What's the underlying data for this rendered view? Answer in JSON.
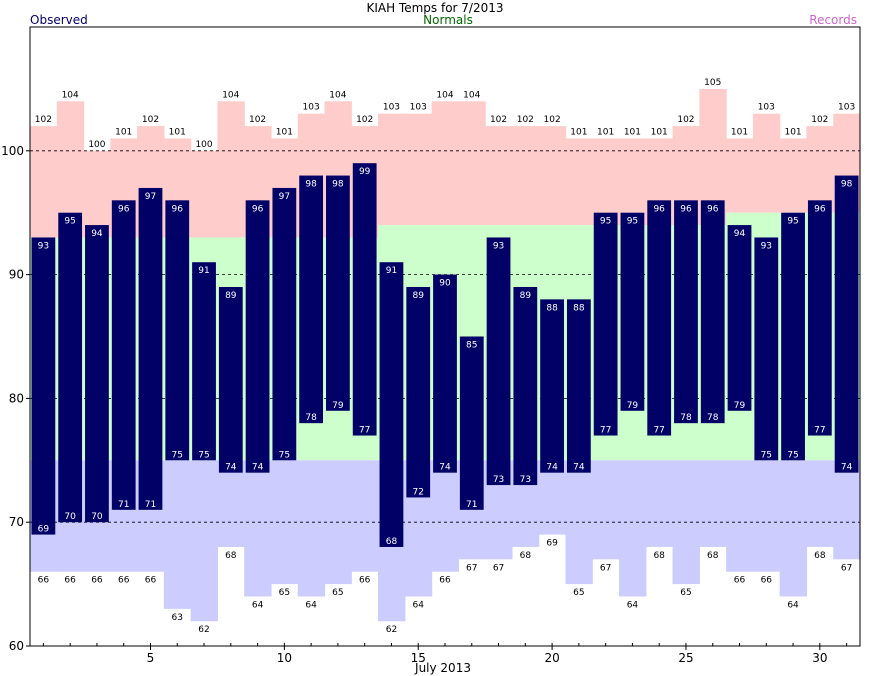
{
  "chart_data": {
    "type": "bar",
    "title": "KIAH Temps for 7/2013",
    "xlabel": "July 2013",
    "ylabel": "",
    "legend": {
      "observed": "Observed",
      "normals": "Normals",
      "records": "Records"
    },
    "colors": {
      "observed": "#000066",
      "normals": "#ccffcc",
      "record_high_band": "#ffcccc",
      "record_low_band": "#ccccff",
      "observed_legend": "#000066",
      "normals_legend": "#006600",
      "records_legend": "#cc66cc"
    },
    "x_range": [
      0.5,
      31.5
    ],
    "ylim": [
      60,
      110
    ],
    "y_ticks": [
      "60",
      "70",
      "80",
      "90",
      "100"
    ],
    "x_ticks": [
      "5",
      "10",
      "15",
      "20",
      "25",
      "30"
    ],
    "x_tick_days": [
      5,
      10,
      15,
      20,
      25,
      30
    ],
    "gridlines_dashed": [
      70,
      80,
      90,
      100
    ],
    "days": [
      1,
      2,
      3,
      4,
      5,
      6,
      7,
      8,
      9,
      10,
      11,
      12,
      13,
      14,
      15,
      16,
      17,
      18,
      19,
      20,
      21,
      22,
      23,
      24,
      25,
      26,
      27,
      28,
      29,
      30,
      31
    ],
    "observed_high": [
      93,
      95,
      94,
      96,
      97,
      96,
      91,
      89,
      96,
      97,
      98,
      98,
      99,
      91,
      89,
      90,
      85,
      93,
      89,
      88,
      88,
      95,
      95,
      96,
      96,
      96,
      94,
      93,
      95,
      96,
      98
    ],
    "observed_low": [
      69,
      70,
      70,
      71,
      71,
      75,
      75,
      74,
      74,
      75,
      78,
      79,
      77,
      68,
      72,
      74,
      71,
      73,
      73,
      74,
      74,
      77,
      79,
      77,
      78,
      78,
      79,
      75,
      75,
      77,
      74
    ],
    "normal_high": [
      93,
      93,
      93,
      93,
      93,
      93,
      93,
      93,
      93,
      93,
      93,
      93,
      93,
      94,
      94,
      94,
      94,
      94,
      94,
      94,
      94,
      94,
      94,
      94,
      94,
      94,
      95,
      95,
      95,
      95,
      95
    ],
    "normal_low": [
      75,
      75,
      75,
      75,
      75,
      75,
      75,
      75,
      75,
      75,
      75,
      75,
      75,
      75,
      75,
      75,
      75,
      75,
      75,
      75,
      75,
      75,
      75,
      75,
      75,
      75,
      75,
      75,
      75,
      75,
      75
    ],
    "record_high": [
      102,
      104,
      100,
      101,
      102,
      101,
      100,
      104,
      102,
      101,
      103,
      104,
      102,
      103,
      103,
      104,
      104,
      102,
      102,
      102,
      101,
      101,
      101,
      101,
      102,
      105,
      101,
      103,
      101,
      102,
      103
    ],
    "record_low": [
      66,
      66,
      66,
      66,
      66,
      63,
      62,
      68,
      64,
      65,
      64,
      65,
      66,
      62,
      64,
      66,
      67,
      67,
      68,
      69,
      65,
      67,
      64,
      68,
      65,
      68,
      66,
      66,
      64,
      68,
      67
    ]
  }
}
